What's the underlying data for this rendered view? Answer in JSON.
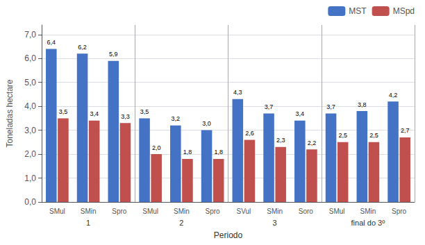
{
  "chart_data": {
    "type": "bar",
    "categories": [
      "SMul",
      "SMin",
      "Spro",
      "SMul",
      "SMin",
      "Spro",
      "SVul",
      "SMin",
      "Soro",
      "SMul",
      "SMin",
      "Spro"
    ],
    "series": [
      {
        "name": "MST",
        "color": "#4472C4",
        "values": [
          6.4,
          6.2,
          5.9,
          3.5,
          3.2,
          3.0,
          4.3,
          3.7,
          3.4,
          3.7,
          3.8,
          4.2
        ],
        "value_labels": [
          "6,4",
          "6,2",
          "5,9",
          "3,5",
          "3,2",
          "3,0",
          "4,3",
          "3,7",
          "3,4",
          "3,7",
          "3,8",
          "4,2"
        ]
      },
      {
        "name": "MSpd",
        "color": "#C0504D",
        "values": [
          3.5,
          3.4,
          3.3,
          2.0,
          1.8,
          1.8,
          2.6,
          2.3,
          2.2,
          2.5,
          2.5,
          2.7
        ],
        "value_labels": [
          "3,5",
          "3,4",
          "3,3",
          "2,0",
          "1,8",
          "1,8",
          "2,6",
          "2,3",
          "2,2",
          "2,5",
          "2,5",
          "2,7"
        ]
      }
    ],
    "ylabel": "Toneladas hectare",
    "xlabel": "Periodo",
    "annotations": [
      "1",
      "2",
      "3",
      "final do 3º"
    ],
    "ylim": [
      0,
      7.4
    ],
    "yticks": [
      {
        "value": 0.0,
        "label": "0,0"
      },
      {
        "value": 1.0,
        "label": "1,0"
      },
      {
        "value": 2.0,
        "label": "2,0"
      },
      {
        "value": 3.0,
        "label": "3,0"
      },
      {
        "value": 4.0,
        "label": "4,0"
      },
      {
        "value": 5.0,
        "label": "5,0"
      },
      {
        "value": 6.0,
        "label": "6,0"
      },
      {
        "value": 7.0,
        "label": "7,0"
      }
    ],
    "grid": true,
    "legend": "upper right",
    "data_labels": true
  }
}
